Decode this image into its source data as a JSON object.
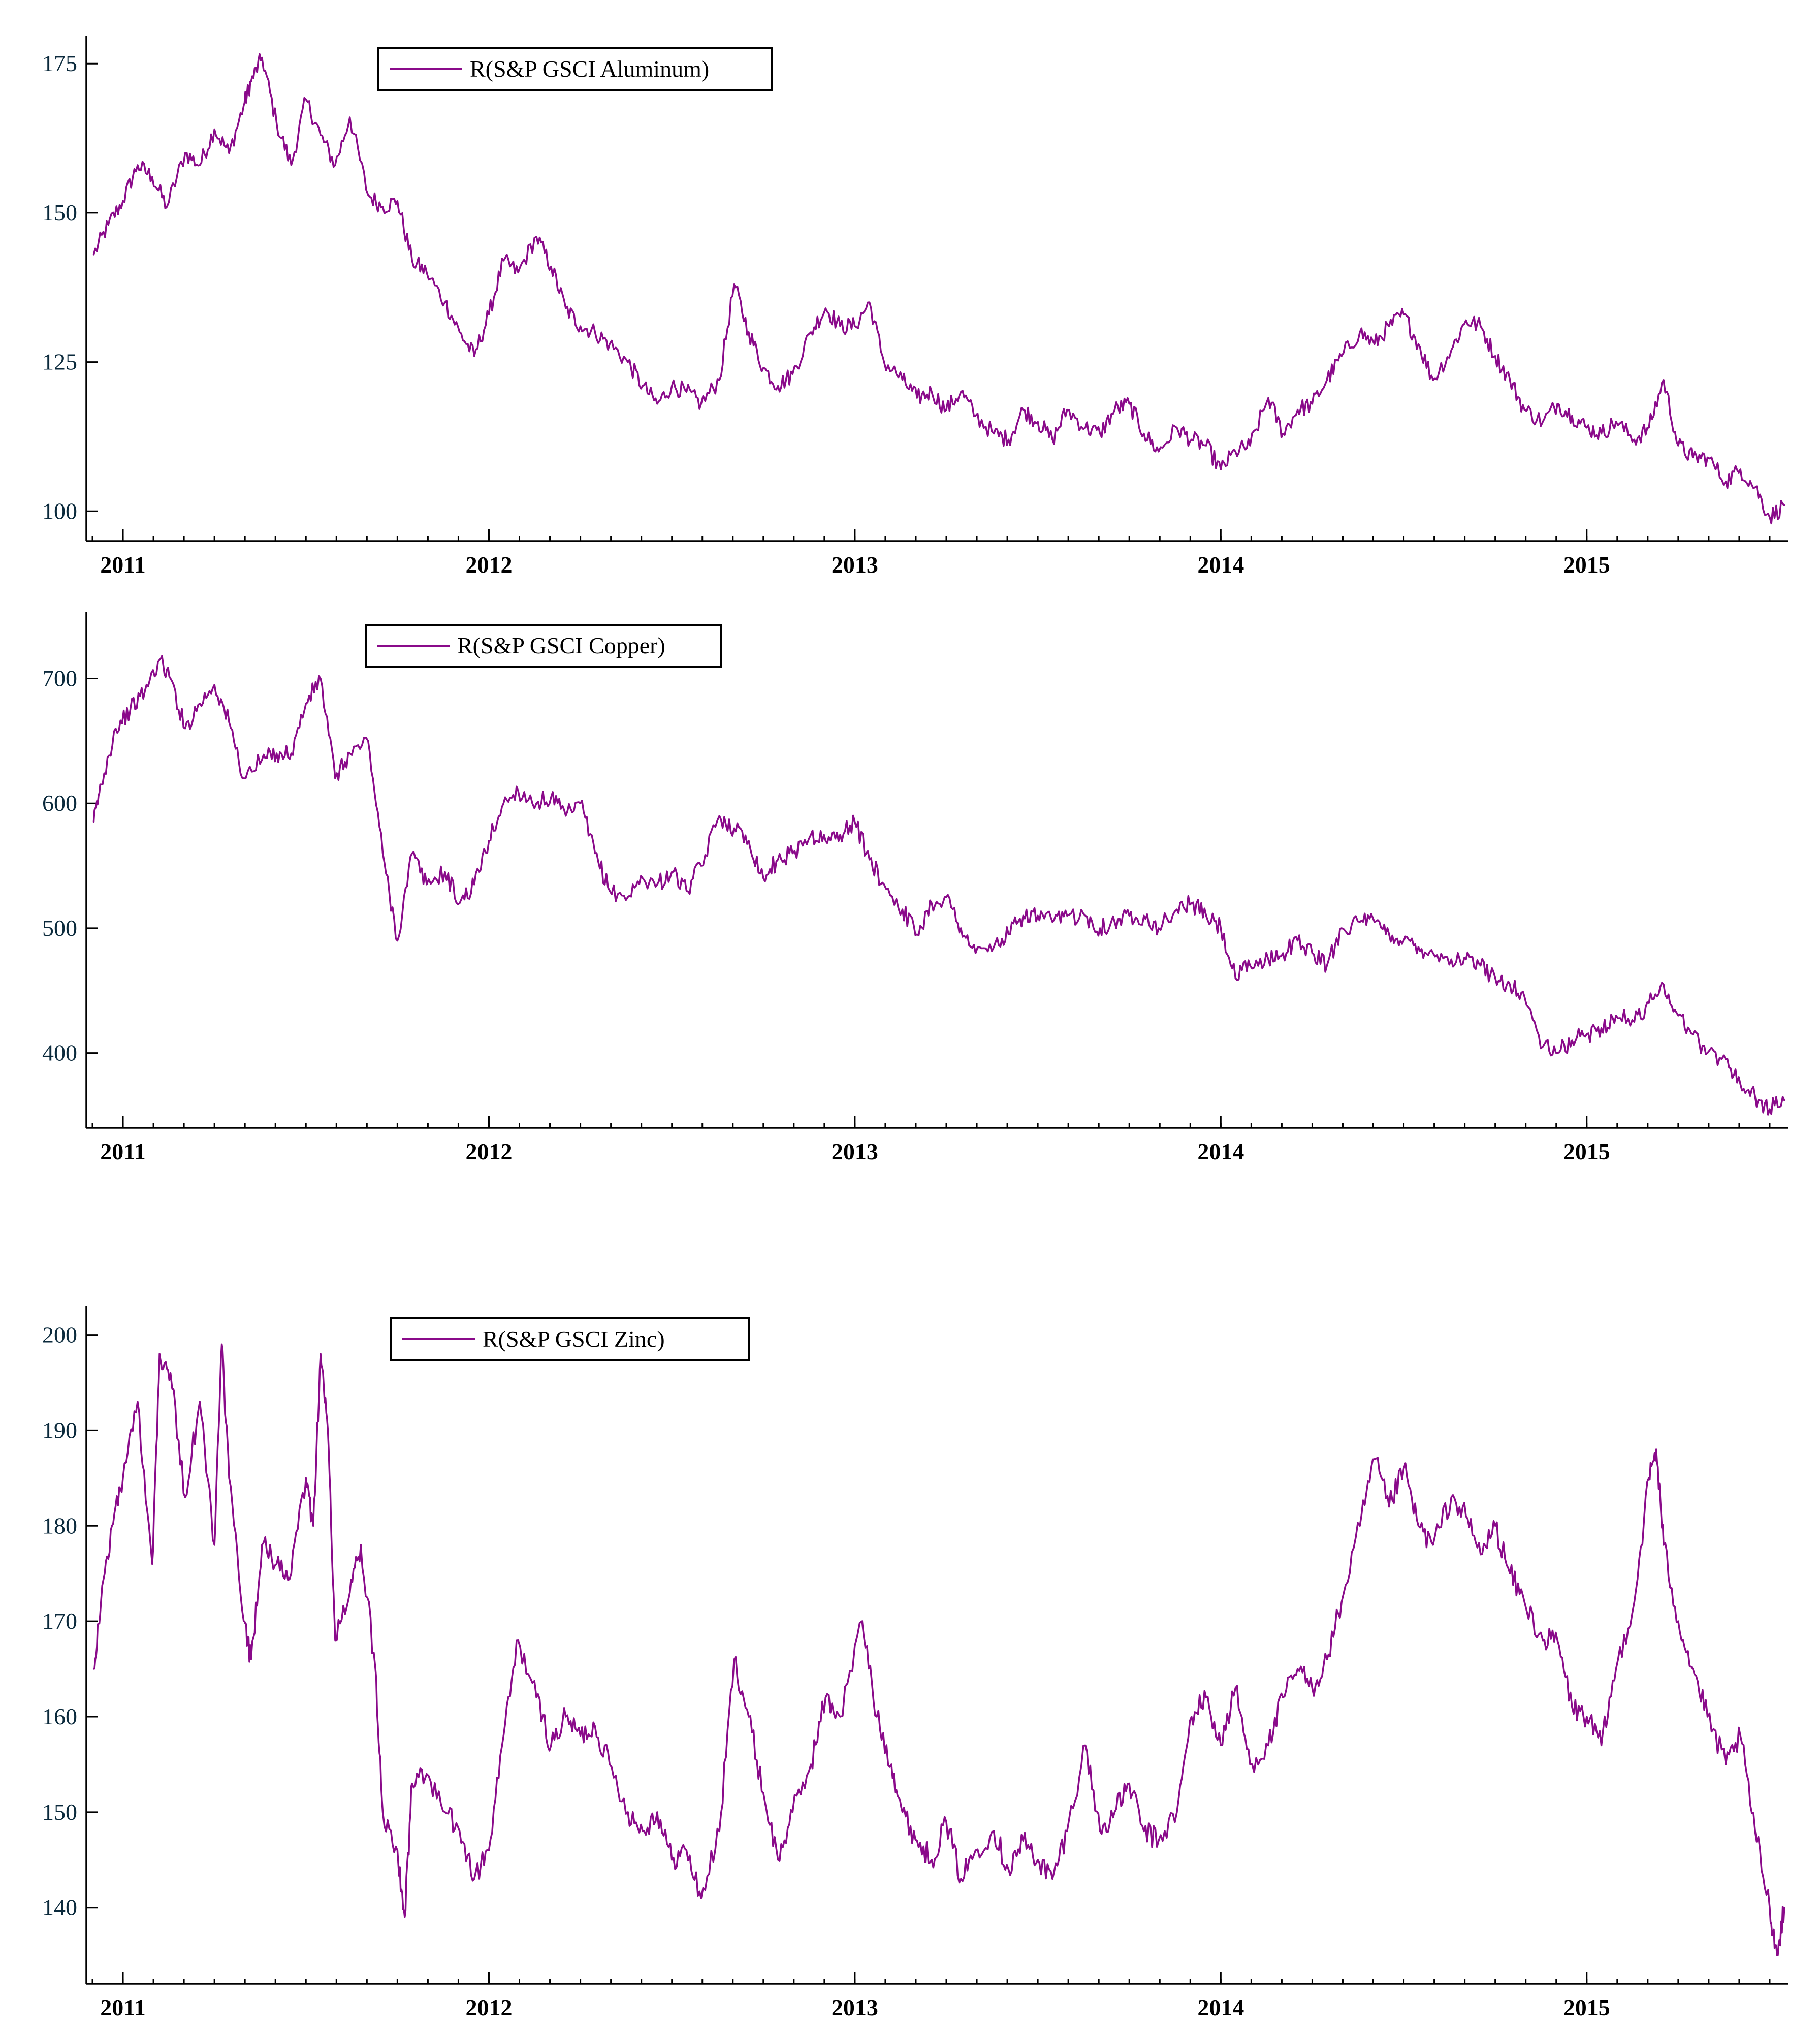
{
  "colors": {
    "series": "#8a0a8a",
    "axis": "#000000",
    "y_tick_text": "#0b2a3c"
  },
  "chart_data": [
    {
      "type": "line",
      "title": "",
      "xlabel": "",
      "ylabel": "",
      "legend": "R(S&P GSCI Aluminum)",
      "legend_placement": "top-left",
      "xlim": [
        2010.9,
        2015.55
      ],
      "ylim": [
        95,
        178
      ],
      "x_ticks": [
        2011,
        2012,
        2013,
        2014,
        2015
      ],
      "x_tick_labels": [
        "2011",
        "2012",
        "2013",
        "2014",
        "2015"
      ],
      "y_ticks": [
        100,
        125,
        150,
        175
      ],
      "y_tick_labels": [
        "100",
        "125",
        "150",
        "175"
      ],
      "series": [
        {
          "name": "R(S&P GSCI Aluminum)",
          "x": [
            2010.92,
            2010.96,
            2011.0,
            2011.04,
            2011.08,
            2011.12,
            2011.17,
            2011.21,
            2011.25,
            2011.29,
            2011.33,
            2011.35,
            2011.38,
            2011.42,
            2011.46,
            2011.5,
            2011.54,
            2011.58,
            2011.62,
            2011.67,
            2011.71,
            2011.75,
            2011.79,
            2011.83,
            2011.88,
            2011.92,
            2011.96,
            2012.0,
            2012.04,
            2012.08,
            2012.13,
            2012.17,
            2012.21,
            2012.25,
            2012.29,
            2012.33,
            2012.38,
            2012.42,
            2012.46,
            2012.5,
            2012.54,
            2012.58,
            2012.63,
            2012.67,
            2012.71,
            2012.75,
            2012.79,
            2012.83,
            2012.88,
            2012.92,
            2012.96,
            2013.0,
            2013.04,
            2013.08,
            2013.13,
            2013.17,
            2013.21,
            2013.25,
            2013.29,
            2013.33,
            2013.38,
            2013.42,
            2013.46,
            2013.5,
            2013.54,
            2013.58,
            2013.63,
            2013.67,
            2013.71,
            2013.75,
            2013.79,
            2013.83,
            2013.88,
            2013.92,
            2013.96,
            2014.0,
            2014.04,
            2014.08,
            2014.13,
            2014.17,
            2014.21,
            2014.25,
            2014.29,
            2014.33,
            2014.38,
            2014.42,
            2014.46,
            2014.5,
            2014.54,
            2014.58,
            2014.63,
            2014.67,
            2014.71,
            2014.75,
            2014.79,
            2014.83,
            2014.88,
            2014.92,
            2014.96,
            2015.0,
            2015.04,
            2015.08,
            2015.13,
            2015.17,
            2015.21,
            2015.25,
            2015.29,
            2015.33,
            2015.38,
            2015.42,
            2015.46,
            2015.5,
            2015.54
          ],
          "values": [
            143,
            148,
            152,
            158,
            156,
            151,
            160,
            158,
            164,
            160,
            168,
            172,
            176,
            165,
            158,
            169,
            163,
            158,
            166,
            153,
            151,
            152,
            142,
            140,
            135,
            130,
            126,
            133,
            142,
            140,
            146,
            141,
            134,
            131,
            130,
            128,
            125,
            121,
            118,
            121,
            120,
            118,
            122,
            138,
            130,
            124,
            121,
            123,
            130,
            134,
            131,
            131,
            135,
            125,
            122,
            119,
            120,
            117,
            120,
            116,
            113,
            112,
            117,
            115,
            112,
            117,
            114,
            113,
            117,
            118,
            113,
            110,
            114,
            112,
            111,
            107,
            110,
            111,
            119,
            113,
            117,
            118,
            122,
            126,
            130,
            128,
            131,
            133,
            128,
            122,
            127,
            132,
            131,
            126,
            122,
            117,
            115,
            118,
            116,
            114,
            113,
            115,
            112,
            114,
            122,
            111,
            109,
            109,
            105,
            107,
            104,
            99,
            101
          ]
        }
      ]
    },
    {
      "type": "line",
      "title": "",
      "xlabel": "",
      "ylabel": "",
      "legend": "R(S&P GSCI Copper)",
      "legend_placement": "top-left",
      "xlim": [
        2010.9,
        2015.55
      ],
      "ylim": [
        340,
        745
      ],
      "x_ticks": [
        2011,
        2012,
        2013,
        2014,
        2015
      ],
      "x_tick_labels": [
        "2011",
        "2012",
        "2013",
        "2014",
        "2015"
      ],
      "y_ticks": [
        400,
        500,
        600,
        700
      ],
      "y_tick_labels": [
        "400",
        "500",
        "600",
        "700"
      ],
      "series": [
        {
          "name": "R(S&P GSCI Copper)",
          "x": [
            2010.92,
            2010.94,
            2010.98,
            2011.02,
            2011.06,
            2011.1,
            2011.13,
            2011.17,
            2011.21,
            2011.25,
            2011.29,
            2011.33,
            2011.38,
            2011.42,
            2011.46,
            2011.5,
            2011.54,
            2011.58,
            2011.62,
            2011.67,
            2011.71,
            2011.75,
            2011.79,
            2011.83,
            2011.88,
            2011.92,
            2011.96,
            2012.0,
            2012.04,
            2012.08,
            2012.13,
            2012.17,
            2012.21,
            2012.25,
            2012.29,
            2012.33,
            2012.38,
            2012.42,
            2012.46,
            2012.5,
            2012.54,
            2012.58,
            2012.63,
            2012.67,
            2012.71,
            2012.75,
            2012.79,
            2012.83,
            2012.88,
            2012.92,
            2012.96,
            2013.0,
            2013.04,
            2013.08,
            2013.13,
            2013.17,
            2013.21,
            2013.25,
            2013.29,
            2013.33,
            2013.38,
            2013.42,
            2013.46,
            2013.5,
            2013.54,
            2013.58,
            2013.63,
            2013.67,
            2013.71,
            2013.75,
            2013.79,
            2013.83,
            2013.88,
            2013.92,
            2013.96,
            2014.0,
            2014.04,
            2014.08,
            2014.13,
            2014.17,
            2014.21,
            2014.25,
            2014.29,
            2014.33,
            2014.38,
            2014.42,
            2014.46,
            2014.5,
            2014.54,
            2014.58,
            2014.63,
            2014.67,
            2014.71,
            2014.75,
            2014.79,
            2014.83,
            2014.88,
            2014.92,
            2014.96,
            2015.0,
            2015.04,
            2015.08,
            2015.13,
            2015.17,
            2015.21,
            2015.25,
            2015.29,
            2015.33,
            2015.38,
            2015.42,
            2015.46,
            2015.5,
            2015.54
          ],
          "values": [
            585,
            615,
            660,
            675,
            690,
            715,
            700,
            660,
            680,
            695,
            665,
            620,
            635,
            640,
            640,
            680,
            700,
            620,
            640,
            650,
            560,
            490,
            560,
            535,
            545,
            520,
            535,
            570,
            600,
            610,
            600,
            605,
            590,
            600,
            560,
            530,
            525,
            540,
            535,
            545,
            530,
            550,
            590,
            580,
            570,
            540,
            555,
            560,
            575,
            570,
            575,
            585,
            555,
            535,
            515,
            495,
            520,
            525,
            500,
            480,
            485,
            495,
            510,
            510,
            505,
            510,
            510,
            500,
            505,
            510,
            510,
            500,
            515,
            520,
            510,
            500,
            460,
            470,
            475,
            480,
            490,
            480,
            470,
            500,
            505,
            505,
            495,
            490,
            485,
            480,
            475,
            475,
            470,
            460,
            455,
            445,
            405,
            400,
            410,
            415,
            420,
            430,
            425,
            440,
            455,
            430,
            415,
            400,
            395,
            375,
            365,
            355,
            362
          ]
        }
      ]
    },
    {
      "type": "line",
      "title": "",
      "xlabel": "",
      "ylabel": "",
      "legend": "R(S&P GSCI Zinc)",
      "legend_placement": "top-left",
      "xlim": [
        2010.9,
        2015.55
      ],
      "ylim": [
        132,
        202
      ],
      "x_ticks": [
        2011,
        2012,
        2013,
        2014,
        2015
      ],
      "x_tick_labels": [
        "2011",
        "2012",
        "2013",
        "2014",
        "2015"
      ],
      "y_ticks": [
        140,
        150,
        160,
        170,
        180,
        190,
        200
      ],
      "y_tick_labels": [
        "140",
        "150",
        "160",
        "170",
        "180",
        "190",
        "200"
      ],
      "series": [
        {
          "name": "R(S&P GSCI Zinc)",
          "x": [
            2010.92,
            2010.94,
            2010.97,
            2011.0,
            2011.04,
            2011.08,
            2011.1,
            2011.13,
            2011.17,
            2011.21,
            2011.25,
            2011.27,
            2011.29,
            2011.33,
            2011.35,
            2011.38,
            2011.42,
            2011.46,
            2011.5,
            2011.52,
            2011.54,
            2011.56,
            2011.58,
            2011.62,
            2011.65,
            2011.69,
            2011.71,
            2011.75,
            2011.77,
            2011.79,
            2011.83,
            2011.88,
            2011.92,
            2011.96,
            2012.0,
            2012.04,
            2012.08,
            2012.13,
            2012.17,
            2012.21,
            2012.25,
            2012.29,
            2012.33,
            2012.38,
            2012.42,
            2012.46,
            2012.5,
            2012.54,
            2012.58,
            2012.63,
            2012.67,
            2012.71,
            2012.75,
            2012.79,
            2012.83,
            2012.88,
            2012.92,
            2012.96,
            2013.02,
            2013.06,
            2013.1,
            2013.13,
            2013.17,
            2013.21,
            2013.25,
            2013.29,
            2013.33,
            2013.38,
            2013.42,
            2013.46,
            2013.5,
            2013.54,
            2013.58,
            2013.63,
            2013.67,
            2013.71,
            2013.75,
            2013.79,
            2013.83,
            2013.88,
            2013.92,
            2013.96,
            2014.0,
            2014.04,
            2014.08,
            2014.13,
            2014.17,
            2014.21,
            2014.25,
            2014.29,
            2014.33,
            2014.38,
            2014.42,
            2014.46,
            2014.5,
            2014.54,
            2014.58,
            2014.63,
            2014.67,
            2014.71,
            2014.75,
            2014.79,
            2014.83,
            2014.88,
            2014.92,
            2014.96,
            2015.0,
            2015.04,
            2015.08,
            2015.13,
            2015.17,
            2015.19,
            2015.21,
            2015.25,
            2015.29,
            2015.33,
            2015.38,
            2015.42,
            2015.46,
            2015.5,
            2015.52,
            2015.54
          ],
          "values": [
            165,
            172,
            180,
            185,
            193,
            176,
            198,
            196,
            183,
            193,
            178,
            199,
            185,
            170,
            166,
            178,
            176,
            175,
            185,
            180,
            198,
            190,
            168,
            173,
            178,
            165,
            150,
            146,
            139,
            153,
            154,
            150,
            148,
            143,
            146,
            158,
            168,
            162,
            157,
            160,
            158,
            159,
            155,
            150,
            148,
            150,
            145,
            146,
            141,
            148,
            166,
            160,
            152,
            145,
            150,
            155,
            162,
            160,
            170,
            160,
            155,
            150,
            147,
            145,
            149,
            143,
            146,
            148,
            144,
            147,
            145,
            143,
            148,
            157,
            148,
            150,
            153,
            148,
            147,
            150,
            160,
            162,
            157,
            163,
            155,
            157,
            162,
            165,
            163,
            166,
            172,
            180,
            187,
            182,
            186,
            180,
            178,
            183,
            181,
            177,
            180,
            175,
            172,
            168,
            168,
            161,
            160,
            157,
            165,
            172,
            185,
            188,
            178,
            170,
            165,
            160,
            155,
            158,
            148,
            140,
            135,
            140
          ]
        }
      ]
    }
  ]
}
